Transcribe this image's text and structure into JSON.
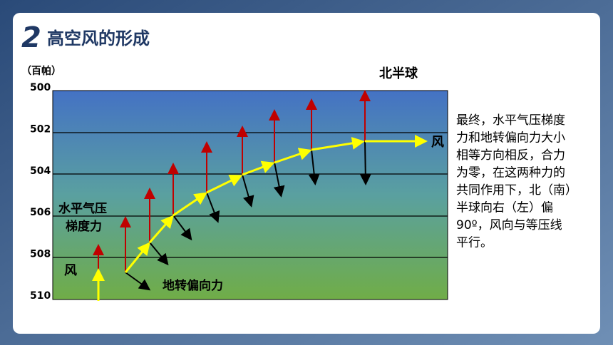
{
  "header": {
    "number": "2",
    "title": "高空风的形成"
  },
  "diagram": {
    "unit": "（百帕）",
    "hemisphere": "北半球",
    "isobars": [
      "500",
      "502",
      "504",
      "506",
      "508",
      "510"
    ],
    "wind_start": "风",
    "wind_end": "风",
    "pressure_force": [
      "水平气压",
      "梯度力"
    ],
    "coriolis_force": "地转偏向力"
  },
  "text": {
    "lines": [
      "最终，水平气压梯度",
      "力和地转偏向力大小",
      "相等方向相反，合力",
      "为零，在这两种力的",
      "共同作用下，北（南）",
      "半球向右（左）偏",
      "90º，风向与等压线",
      "平行。"
    ]
  }
}
